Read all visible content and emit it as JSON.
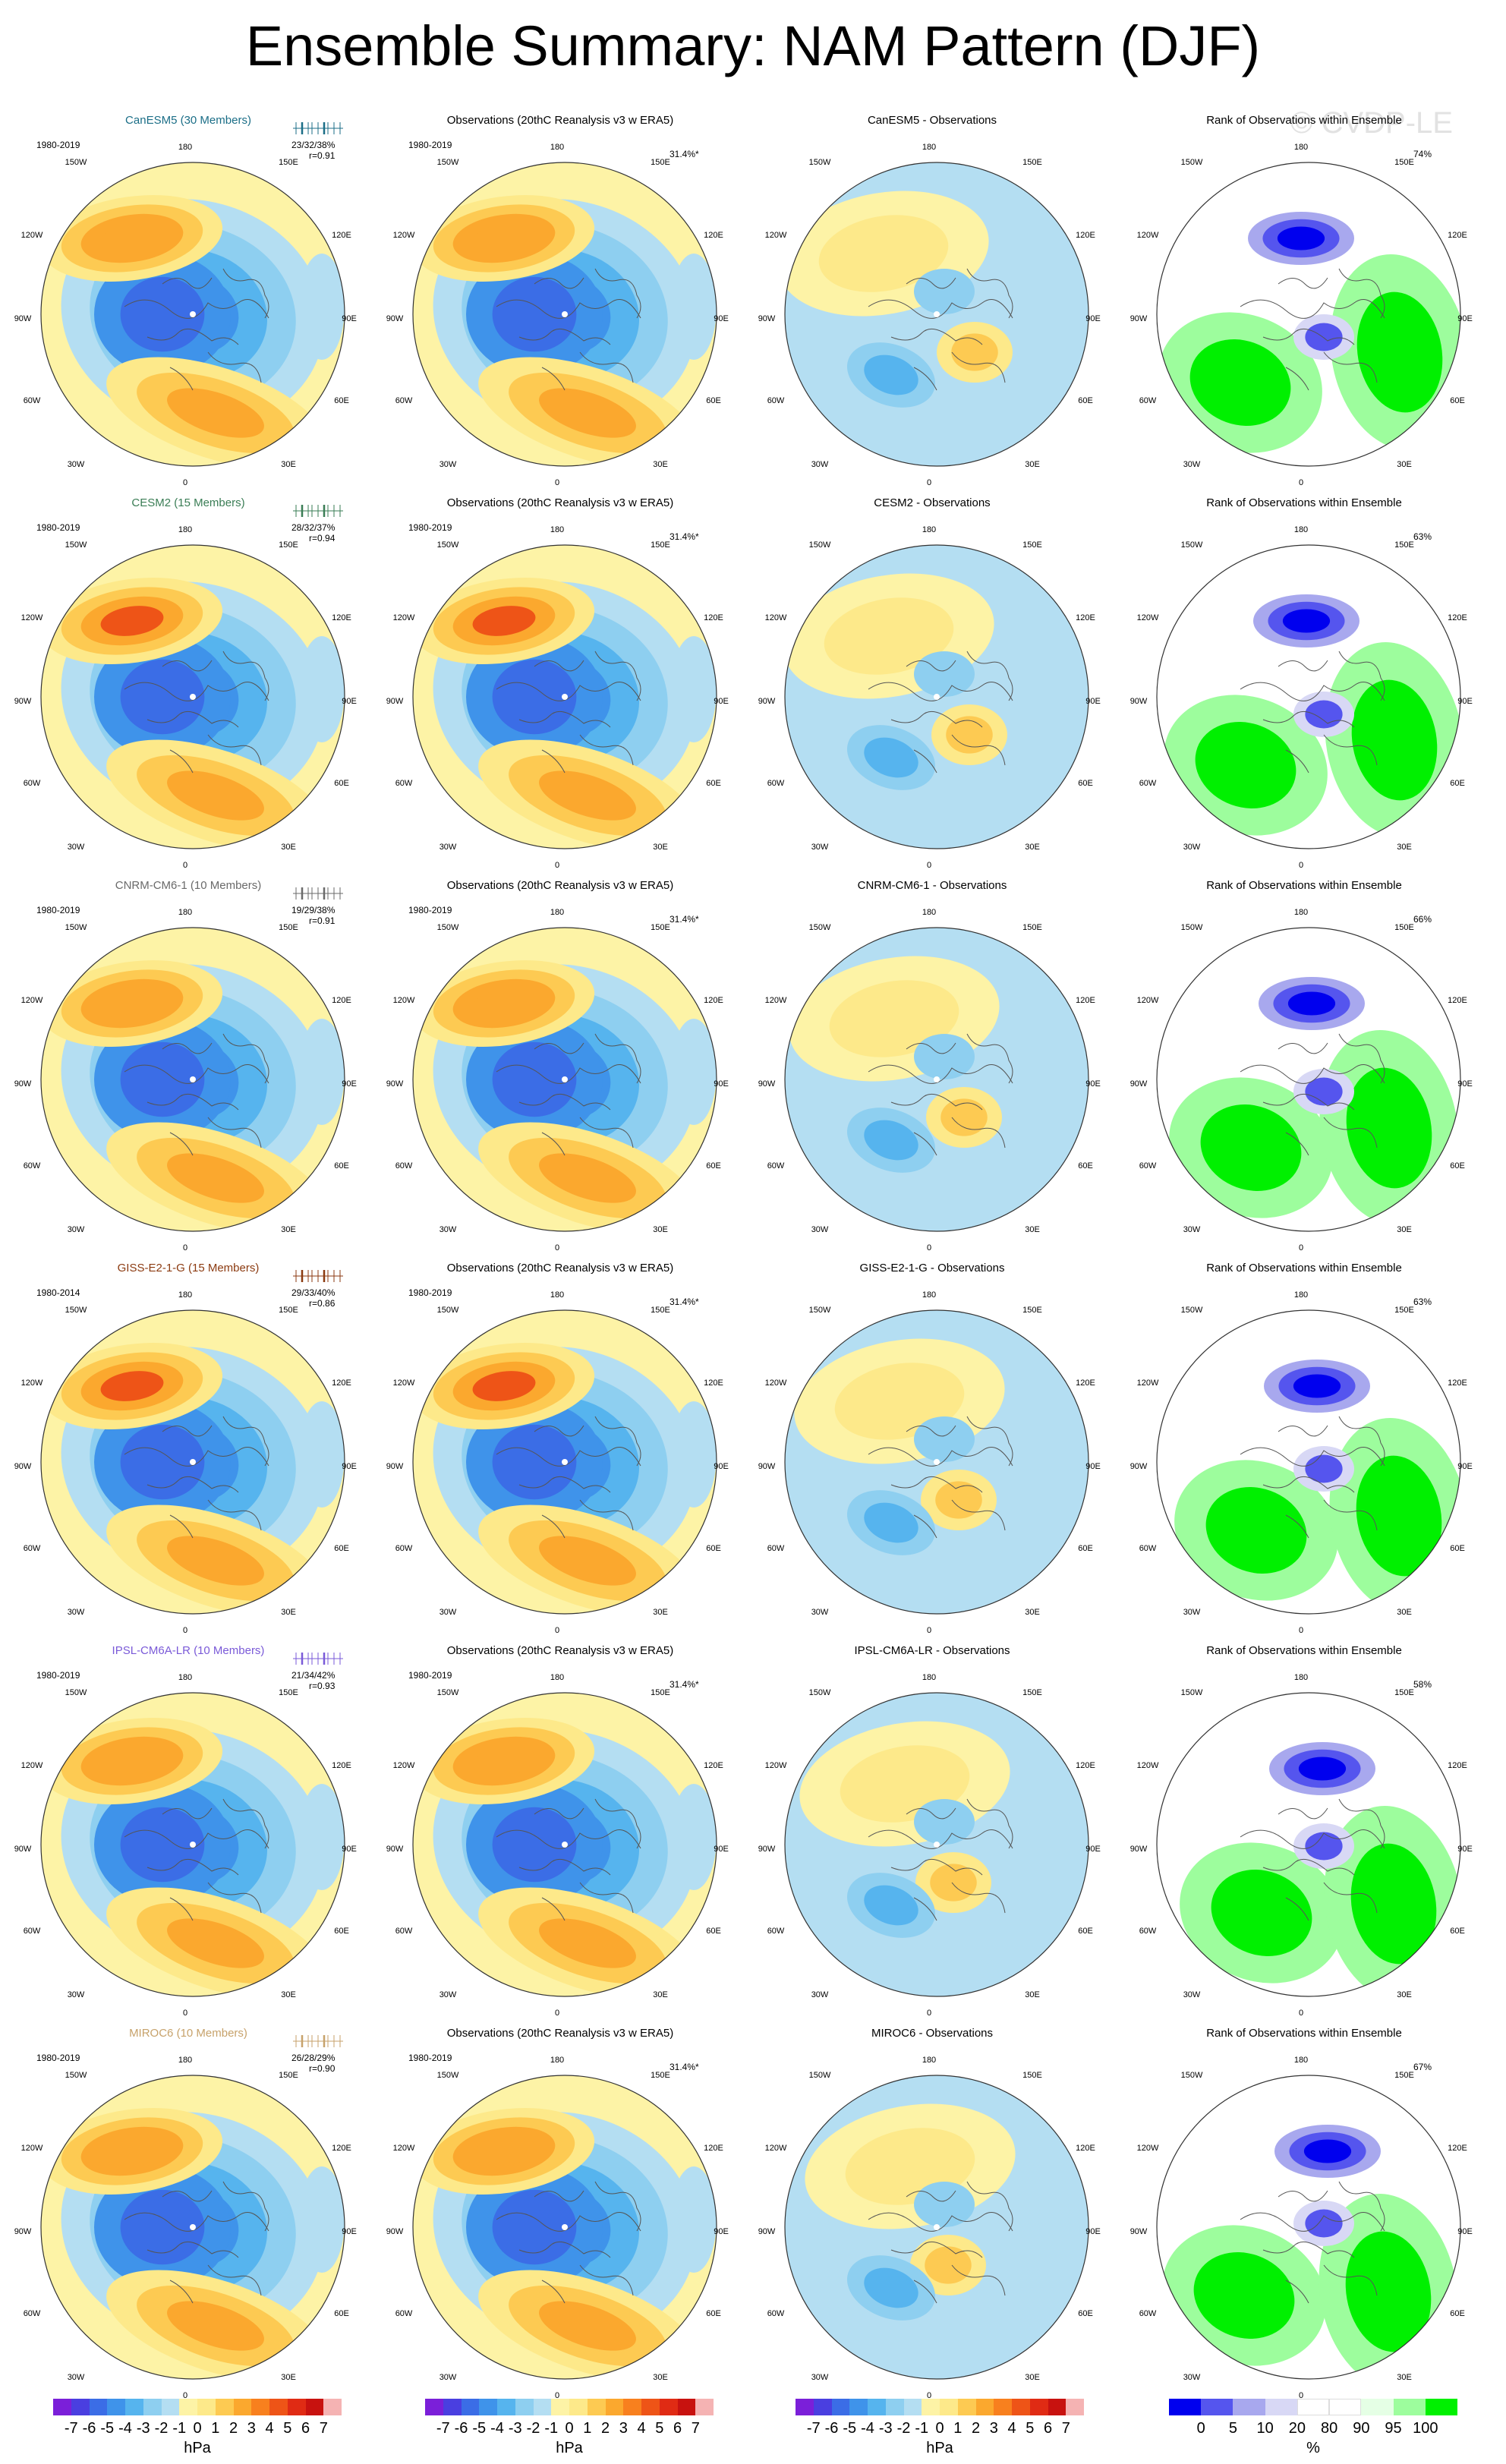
{
  "title": "Ensemble Summary: NAM Pattern (DJF)",
  "watermark": "© CVDP-LE",
  "lon_labels": {
    "top": "180",
    "top_left": "150W",
    "top_right": "150E",
    "upper_left": "120W",
    "upper_right": "120E",
    "left": "90W",
    "right": "90E",
    "lower_left": "60W",
    "lower_right": "60E",
    "bottom_left": "30W",
    "bottom_right": "30E",
    "bottom": "0"
  },
  "colors": {
    "pressure_scale": [
      "#7b1fd9",
      "#4a3fe0",
      "#3b6de6",
      "#3f93ea",
      "#56b4ee",
      "#8ecff0",
      "#b4def2",
      "#fdf3a6",
      "#fde98a",
      "#fdca52",
      "#fba82e",
      "#f8801e",
      "#ee5417",
      "#e02b14",
      "#c8120f",
      "#f5b3b3"
    ],
    "rank_scale": [
      "#0000ee",
      "#5555ee",
      "#a8a8ee",
      "#d8d8f5",
      "#ffffff",
      "#ffffff",
      "#e5ffe5",
      "#9dfd9d",
      "#00f000"
    ],
    "model_names": [
      "#1b6e87",
      "#3a7d55",
      "#6a6a6a",
      "#8b3a10",
      "#7a5ad8",
      "#c7a26b"
    ]
  },
  "rows": [
    {
      "model": "CanESM5 (30 Members)",
      "period": "1980-2019",
      "stats": "23/32/38%",
      "corr": "r=0.91",
      "obs_title": "Observations (20thC Reanalysis v3 w ERA5)",
      "obs_period": "1980-2019",
      "obs_pct": "31.4%*",
      "diff_title": "CanESM5 - Observations",
      "rank_title": "Rank of Observations within Ensemble",
      "rank_pct": "74%"
    },
    {
      "model": "CESM2 (15 Members)",
      "period": "1980-2019",
      "stats": "28/32/37%",
      "corr": "r=0.94",
      "obs_title": "Observations (20thC Reanalysis v3 w ERA5)",
      "obs_period": "1980-2019",
      "obs_pct": "31.4%*",
      "diff_title": "CESM2 - Observations",
      "rank_title": "Rank of Observations within Ensemble",
      "rank_pct": "63%"
    },
    {
      "model": "CNRM-CM6-1 (10 Members)",
      "period": "1980-2019",
      "stats": "19/29/38%",
      "corr": "r=0.91",
      "obs_title": "Observations (20thC Reanalysis v3 w ERA5)",
      "obs_period": "1980-2019",
      "obs_pct": "31.4%*",
      "diff_title": "CNRM-CM6-1 - Observations",
      "rank_title": "Rank of Observations within Ensemble",
      "rank_pct": "66%"
    },
    {
      "model": "GISS-E2-1-G (15 Members)",
      "period": "1980-2014",
      "stats": "29/33/40%",
      "corr": "r=0.86",
      "obs_title": "Observations (20thC Reanalysis v3 w ERA5)",
      "obs_period": "1980-2019",
      "obs_pct": "31.4%*",
      "diff_title": "GISS-E2-1-G - Observations",
      "rank_title": "Rank of Observations within Ensemble",
      "rank_pct": "63%"
    },
    {
      "model": "IPSL-CM6A-LR (10 Members)",
      "period": "1980-2019",
      "stats": "21/34/42%",
      "corr": "r=0.93",
      "obs_title": "Observations (20thC Reanalysis v3 w ERA5)",
      "obs_period": "1980-2019",
      "obs_pct": "31.4%*",
      "diff_title": "IPSL-CM6A-LR - Observations",
      "rank_title": "Rank of Observations within Ensemble",
      "rank_pct": "58%"
    },
    {
      "model": "MIROC6 (10 Members)",
      "period": "1980-2019",
      "stats": "26/28/29%",
      "corr": "r=0.90",
      "obs_title": "Observations (20thC Reanalysis v3 w ERA5)",
      "obs_period": "1980-2019",
      "obs_pct": "31.4%*",
      "diff_title": "MIROC6 - Observations",
      "rank_title": "Rank of Observations within Ensemble",
      "rank_pct": "67%"
    }
  ],
  "colorbars": {
    "pressure_ticks": [
      "-7",
      "-6",
      "-5",
      "-4",
      "-3",
      "-2",
      "-1",
      "0",
      "1",
      "2",
      "3",
      "4",
      "5",
      "6",
      "7"
    ],
    "pressure_unit": "hPa",
    "rank_ticks": [
      "0",
      "5",
      "10",
      "20",
      "80",
      "90",
      "95",
      "100"
    ],
    "rank_unit": "%"
  }
}
